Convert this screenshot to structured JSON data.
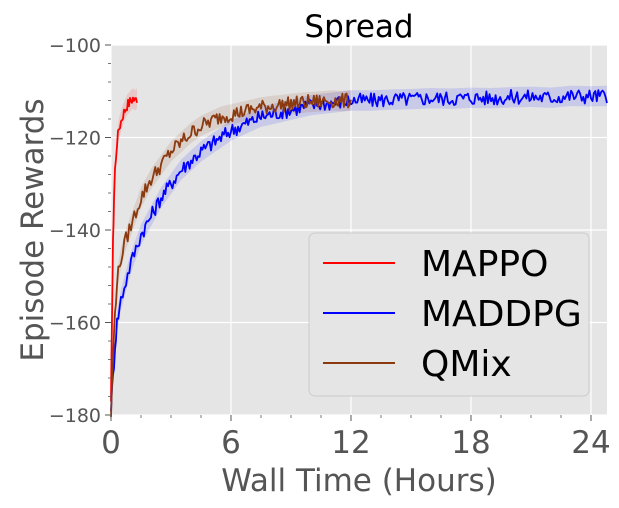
{
  "chart_data": {
    "type": "line",
    "title": "Spread",
    "xlabel": "Wall Time (Hours)",
    "ylabel": "Episode Rewards",
    "xlim": [
      0,
      24.8
    ],
    "ylim": [
      -180,
      -100
    ],
    "xticks": [
      0,
      6,
      12,
      18,
      24
    ],
    "yticks": [
      -180,
      -160,
      -140,
      -120,
      -100
    ],
    "grid": true,
    "legend_position": "lower-right",
    "series": [
      {
        "name": "MAPPO",
        "color": "#ff0000",
        "x": [
          0.0,
          0.05,
          0.1,
          0.15,
          0.2,
          0.3,
          0.4,
          0.5,
          0.6,
          0.7,
          0.8,
          0.9,
          1.0,
          1.1,
          1.2,
          1.3
        ],
        "y": [
          -178,
          -158,
          -143,
          -133,
          -127,
          -121,
          -118,
          -116.5,
          -115,
          -114,
          -113,
          -112.5,
          -112,
          -111.5,
          -112,
          -111.5
        ]
      },
      {
        "name": "MADDPG",
        "color": "#0000ff",
        "x": [
          0.0,
          0.1,
          0.2,
          0.3,
          0.5,
          0.75,
          1.0,
          1.25,
          1.5,
          2.0,
          2.5,
          3.0,
          3.5,
          4.0,
          4.5,
          5.0,
          5.5,
          6.0,
          6.5,
          7.0,
          7.5,
          8.0,
          8.5,
          9.0,
          9.5,
          10.0,
          11.0,
          12.0,
          13.0,
          14.0,
          15.0,
          16.0,
          17.0,
          18.0,
          19.0,
          20.0,
          21.0,
          22.0,
          23.0,
          24.0,
          24.8
        ],
        "y": [
          -178,
          -172,
          -165,
          -160,
          -155,
          -151,
          -147,
          -144,
          -141,
          -137,
          -133,
          -130,
          -127,
          -125,
          -123,
          -121.5,
          -120,
          -118.5,
          -117.5,
          -116.5,
          -115.5,
          -115,
          -114.5,
          -114,
          -113.5,
          -113,
          -112.5,
          -112,
          -112,
          -111.8,
          -111.7,
          -111.5,
          -111.6,
          -111.4,
          -111.5,
          -111.3,
          -111.2,
          -111.4,
          -111.0,
          -111.1,
          -111.0
        ]
      },
      {
        "name": "QMix",
        "color": "#8b3a0f",
        "x": [
          0.0,
          0.1,
          0.2,
          0.3,
          0.5,
          0.75,
          1.0,
          1.25,
          1.5,
          2.0,
          2.5,
          3.0,
          3.5,
          4.0,
          4.5,
          5.0,
          5.5,
          6.0,
          6.5,
          7.0,
          7.5,
          8.0,
          8.5,
          9.0,
          9.5,
          10.0,
          10.5,
          11.0,
          11.5,
          12.0
        ],
        "y": [
          -180,
          -168,
          -158,
          -151,
          -146,
          -142,
          -139,
          -136,
          -133,
          -129,
          -126,
          -123,
          -121,
          -119,
          -117.5,
          -116.5,
          -115.5,
          -115,
          -114.5,
          -114,
          -113.5,
          -113.2,
          -113,
          -112.7,
          -112.5,
          -112.3,
          -112.2,
          -112.0,
          -112.1,
          -112.0
        ]
      }
    ]
  }
}
